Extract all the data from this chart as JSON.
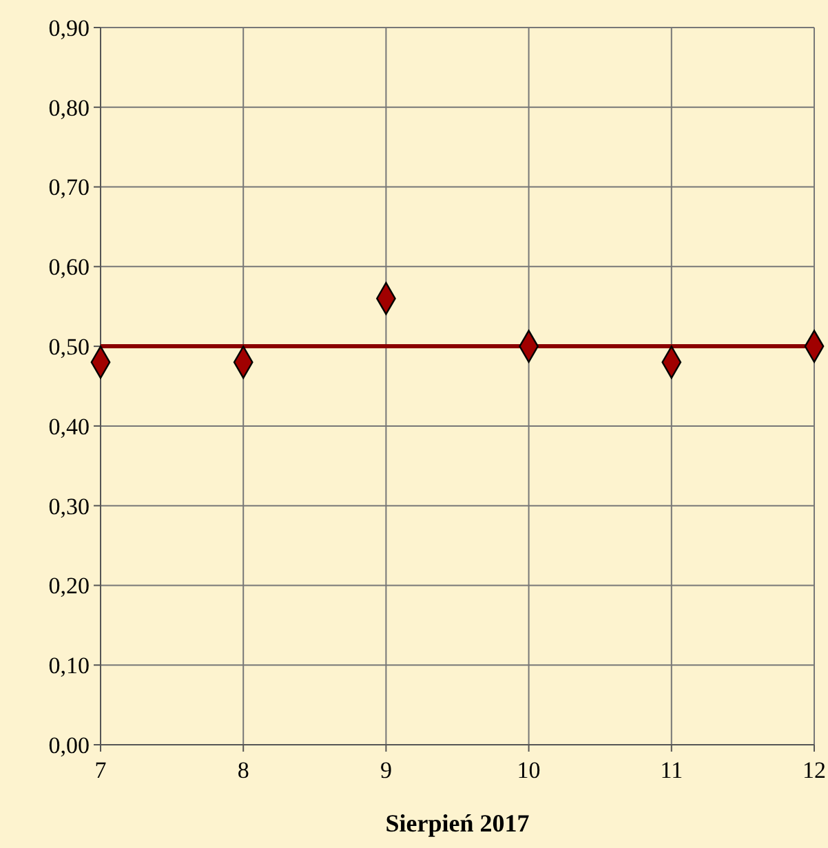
{
  "chart_data": {
    "type": "scatter",
    "xlabel": "Sierpień 2017",
    "x": [
      7,
      8,
      9,
      10,
      11,
      12
    ],
    "series": [
      {
        "color": "#a00000",
        "values": [
          0.48,
          0.48,
          0.56,
          0.5,
          0.48,
          0.5
        ]
      }
    ],
    "marker": "diamond",
    "grid": true,
    "xlim": [
      7,
      12
    ],
    "xticks": [
      7,
      8,
      9,
      10,
      11,
      12
    ],
    "ylim": [
      0,
      0.9
    ],
    "yticks": [
      {
        "value": 0,
        "label": "0,00"
      },
      {
        "value": 0.1,
        "label": "0,10"
      },
      {
        "value": 0.2,
        "label": "0,20"
      },
      {
        "value": 0.3,
        "label": "0,30"
      },
      {
        "value": 0.4,
        "label": "0,40"
      },
      {
        "value": 0.5,
        "label": "0,50"
      },
      {
        "value": 0.6,
        "label": "0,60"
      },
      {
        "value": 0.7,
        "label": "0,70"
      },
      {
        "value": 0.8,
        "label": "0,80"
      },
      {
        "value": 0.9,
        "label": "0,90"
      }
    ],
    "ref_lines": [
      {
        "axis": "y",
        "value": 0.5,
        "color": "#8b0000"
      }
    ]
  }
}
